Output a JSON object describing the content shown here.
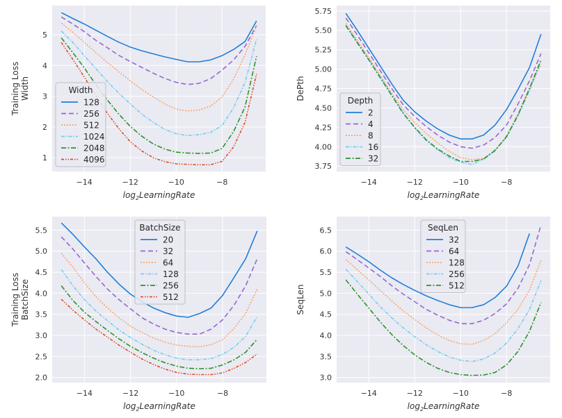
{
  "colors": {
    "background": "#eaeaf2",
    "grid": "#ffffff",
    "series": [
      "#1f7fd8",
      "#9467d0",
      "#f7a66a",
      "#74cdf0",
      "#2a922a",
      "#df4a1e"
    ]
  },
  "chart_data": [
    {
      "type": "line",
      "id": "width",
      "title": "",
      "xlabel_prefix": "log",
      "xlabel_sub": "2",
      "xlabel_suffix": "LearningRate",
      "ylabel_lines": [
        "Training Loss",
        "Width"
      ],
      "xlim": [
        -15.4,
        -6.1
      ],
      "ylim": [
        0.55,
        5.95
      ],
      "xticks": [
        -14,
        -12,
        -10,
        -8
      ],
      "xtick_labels": [
        "−14",
        "−12",
        "−10",
        "−8"
      ],
      "yticks": [
        1,
        2,
        3,
        4,
        5
      ],
      "ytick_labels": [
        "1",
        "2",
        "3",
        "4",
        "5"
      ],
      "grid": true,
      "legend_title": "Width",
      "legend_position": "lower-left",
      "x": [
        -15,
        -14.5,
        -14,
        -13.5,
        -13,
        -12.5,
        -12,
        -11.5,
        -11,
        -10.5,
        -10,
        -9.5,
        -9,
        -8.5,
        -8,
        -7.5,
        -7,
        -6.5
      ],
      "series": [
        {
          "name": "128",
          "values": [
            5.72,
            5.53,
            5.35,
            5.15,
            4.95,
            4.76,
            4.6,
            4.48,
            4.38,
            4.28,
            4.2,
            4.12,
            4.12,
            4.18,
            4.32,
            4.52,
            4.78,
            5.45
          ]
        },
        {
          "name": "256",
          "values": [
            5.58,
            5.35,
            5.1,
            4.82,
            4.58,
            4.33,
            4.13,
            3.94,
            3.75,
            3.58,
            3.45,
            3.38,
            3.42,
            3.57,
            3.85,
            4.18,
            4.62,
            5.3
          ]
        },
        {
          "name": "512",
          "values": [
            5.38,
            5.08,
            4.75,
            4.42,
            4.1,
            3.8,
            3.5,
            3.22,
            2.98,
            2.75,
            2.58,
            2.52,
            2.55,
            2.68,
            2.98,
            3.55,
            4.35,
            5.28
          ]
        },
        {
          "name": "1024",
          "values": [
            5.12,
            4.75,
            4.32,
            3.9,
            3.48,
            3.1,
            2.75,
            2.42,
            2.15,
            1.92,
            1.78,
            1.72,
            1.75,
            1.82,
            2.05,
            2.62,
            3.45,
            4.85
          ]
        },
        {
          "name": "2048",
          "values": [
            4.9,
            4.42,
            3.92,
            3.38,
            2.88,
            2.42,
            2.02,
            1.7,
            1.45,
            1.28,
            1.18,
            1.15,
            1.14,
            1.15,
            1.3,
            1.85,
            2.65,
            4.3
          ]
        },
        {
          "name": "4096",
          "values": [
            4.75,
            4.2,
            3.62,
            3.02,
            2.45,
            1.95,
            1.52,
            1.22,
            1.0,
            0.87,
            0.8,
            0.78,
            0.77,
            0.77,
            0.88,
            1.35,
            2.15,
            3.72
          ]
        }
      ]
    },
    {
      "type": "line",
      "id": "depth",
      "title": "",
      "xlabel_prefix": "log",
      "xlabel_sub": "2",
      "xlabel_suffix": "LearningRate",
      "ylabel_lines": [
        "DePth"
      ],
      "xlim": [
        -15.4,
        -6.1
      ],
      "ylim": [
        3.68,
        5.82
      ],
      "xticks": [
        -14,
        -12,
        -10,
        -8
      ],
      "xtick_labels": [
        "−14",
        "−12",
        "−10",
        "−8"
      ],
      "yticks": [
        3.75,
        4.0,
        4.25,
        4.5,
        4.75,
        5.0,
        5.25,
        5.5,
        5.75
      ],
      "ytick_labels": [
        "3.75",
        "4.00",
        "4.25",
        "4.50",
        "4.75",
        "5.00",
        "5.25",
        "5.50",
        "5.75"
      ],
      "grid": true,
      "legend_title": "Depth",
      "legend_position": "lower-left",
      "x": [
        -15,
        -14.5,
        -14,
        -13.5,
        -13,
        -12.5,
        -12,
        -11.5,
        -11,
        -10.5,
        -10,
        -9.5,
        -9,
        -8.5,
        -8,
        -7.5,
        -7,
        -6.5
      ],
      "series": [
        {
          "name": "2",
          "values": [
            5.72,
            5.5,
            5.27,
            5.04,
            4.81,
            4.6,
            4.45,
            4.33,
            4.23,
            4.15,
            4.1,
            4.1,
            4.15,
            4.28,
            4.48,
            4.74,
            5.02,
            5.45
          ]
        },
        {
          "name": "4",
          "values": [
            5.66,
            5.44,
            5.21,
            4.98,
            4.75,
            4.54,
            4.39,
            4.26,
            4.15,
            4.06,
            4.0,
            3.98,
            4.02,
            4.12,
            4.28,
            4.55,
            4.85,
            5.2
          ]
        },
        {
          "name": "8",
          "values": [
            5.59,
            5.37,
            5.15,
            4.92,
            4.69,
            4.48,
            4.31,
            4.17,
            4.05,
            3.94,
            3.86,
            3.83,
            3.85,
            3.95,
            4.14,
            4.42,
            4.76,
            5.06
          ]
        },
        {
          "name": "16",
          "values": [
            5.57,
            5.35,
            5.13,
            4.9,
            4.67,
            4.44,
            4.24,
            4.08,
            3.96,
            3.86,
            3.8,
            3.77,
            3.84,
            3.96,
            4.12,
            4.4,
            4.72,
            5.1
          ]
        },
        {
          "name": "32",
          "values": [
            5.56,
            5.34,
            5.12,
            4.89,
            4.66,
            4.43,
            4.25,
            4.09,
            3.97,
            3.88,
            3.81,
            3.81,
            3.84,
            3.95,
            4.13,
            4.41,
            4.75,
            5.12
          ]
        }
      ]
    },
    {
      "type": "line",
      "id": "batchsize",
      "title": "",
      "xlabel_prefix": "log",
      "xlabel_sub": "2",
      "xlabel_suffix": "LearningRate",
      "ylabel_lines": [
        "Training Loss",
        "BatchSize"
      ],
      "xlim": [
        -15.4,
        -6.1
      ],
      "ylim": [
        1.88,
        5.82
      ],
      "xticks": [
        -14,
        -12,
        -10,
        -8
      ],
      "xtick_labels": [
        "−14",
        "−12",
        "−10",
        "−8"
      ],
      "yticks": [
        2.0,
        2.5,
        3.0,
        3.5,
        4.0,
        4.5,
        5.0,
        5.5
      ],
      "ytick_labels": [
        "2.0",
        "2.5",
        "3.0",
        "3.5",
        "4.0",
        "4.5",
        "5.0",
        "5.5"
      ],
      "grid": true,
      "legend_title": "BatchSize",
      "legend_position": "upper-center",
      "x": [
        -15,
        -14.5,
        -14,
        -13.5,
        -13,
        -12.5,
        -12,
        -11.5,
        -11,
        -10.5,
        -10,
        -9.5,
        -9,
        -8.5,
        -8,
        -7.5,
        -7,
        -6.5
      ],
      "series": [
        {
          "name": "20",
          "values": [
            5.67,
            5.4,
            5.1,
            4.82,
            4.5,
            4.22,
            3.98,
            3.8,
            3.65,
            3.54,
            3.46,
            3.43,
            3.52,
            3.65,
            3.95,
            4.38,
            4.82,
            5.48
          ]
        },
        {
          "name": "32",
          "values": [
            5.34,
            5.05,
            4.72,
            4.4,
            4.1,
            3.85,
            3.63,
            3.42,
            3.27,
            3.15,
            3.07,
            3.03,
            3.03,
            3.15,
            3.37,
            3.72,
            4.18,
            4.82
          ]
        },
        {
          "name": "64",
          "values": [
            4.95,
            4.62,
            4.25,
            3.92,
            3.65,
            3.42,
            3.22,
            3.07,
            2.94,
            2.84,
            2.77,
            2.74,
            2.73,
            2.78,
            2.9,
            3.17,
            3.52,
            4.1
          ]
        },
        {
          "name": "128",
          "values": [
            4.56,
            4.18,
            3.85,
            3.58,
            3.35,
            3.13,
            2.95,
            2.79,
            2.65,
            2.54,
            2.46,
            2.42,
            2.42,
            2.45,
            2.55,
            2.72,
            2.98,
            3.45
          ]
        },
        {
          "name": "256",
          "values": [
            4.18,
            3.83,
            3.55,
            3.33,
            3.12,
            2.92,
            2.74,
            2.59,
            2.46,
            2.35,
            2.27,
            2.22,
            2.21,
            2.22,
            2.3,
            2.42,
            2.6,
            2.91
          ]
        },
        {
          "name": "512",
          "values": [
            3.86,
            3.6,
            3.37,
            3.15,
            2.96,
            2.77,
            2.6,
            2.44,
            2.31,
            2.2,
            2.12,
            2.08,
            2.07,
            2.07,
            2.11,
            2.22,
            2.36,
            2.56
          ]
        }
      ]
    },
    {
      "type": "line",
      "id": "seqlen",
      "title": "",
      "xlabel_prefix": "log",
      "xlabel_sub": "2",
      "xlabel_suffix": "LearningRate",
      "ylabel_lines": [
        "SeqLen"
      ],
      "xlim": [
        -15.4,
        -6.1
      ],
      "ylim": [
        2.88,
        6.82
      ],
      "xticks": [
        -14,
        -12,
        -10,
        -8
      ],
      "xtick_labels": [
        "−14",
        "−12",
        "−10",
        "−8"
      ],
      "yticks": [
        3.0,
        3.5,
        4.0,
        4.5,
        5.0,
        5.5,
        6.0,
        6.5
      ],
      "ytick_labels": [
        "3.0",
        "3.5",
        "4.0",
        "4.5",
        "5.0",
        "5.5",
        "6.0",
        "6.5"
      ],
      "grid": true,
      "legend_title": "SeqLen",
      "legend_position": "upper-center",
      "x": [
        -15,
        -14.5,
        -14,
        -13.5,
        -13,
        -12.5,
        -12,
        -11.5,
        -11,
        -10.5,
        -10,
        -9.5,
        -9,
        -8.5,
        -8,
        -7.5,
        -7,
        -6.5
      ],
      "series": [
        {
          "name": "32",
          "values": [
            6.1,
            5.93,
            5.75,
            5.55,
            5.37,
            5.21,
            5.07,
            4.94,
            4.83,
            4.73,
            4.66,
            4.66,
            4.73,
            4.9,
            5.17,
            5.65,
            6.42,
            null
          ]
        },
        {
          "name": "64",
          "values": [
            5.99,
            5.8,
            5.6,
            5.4,
            5.18,
            4.98,
            4.8,
            4.62,
            4.48,
            4.36,
            4.28,
            4.28,
            4.36,
            4.52,
            4.75,
            5.12,
            5.68,
            6.62
          ]
        },
        {
          "name": "128",
          "values": [
            5.8,
            5.56,
            5.32,
            5.07,
            4.82,
            4.58,
            4.38,
            4.18,
            4.01,
            3.88,
            3.8,
            3.79,
            3.88,
            4.04,
            4.3,
            4.62,
            5.08,
            5.78
          ]
        },
        {
          "name": "256",
          "values": [
            5.57,
            5.28,
            4.98,
            4.68,
            4.42,
            4.18,
            3.97,
            3.78,
            3.62,
            3.49,
            3.41,
            3.38,
            3.44,
            3.58,
            3.82,
            4.16,
            4.62,
            5.3
          ]
        },
        {
          "name": "512",
          "values": [
            5.32,
            4.98,
            4.65,
            4.32,
            4.02,
            3.76,
            3.54,
            3.36,
            3.22,
            3.12,
            3.07,
            3.05,
            3.06,
            3.12,
            3.3,
            3.62,
            4.1,
            4.78
          ]
        }
      ]
    }
  ]
}
